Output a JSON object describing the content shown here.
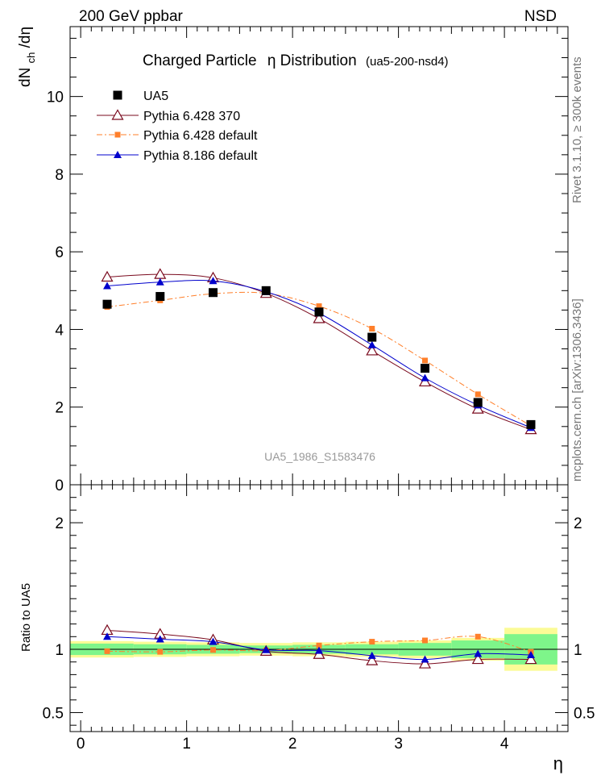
{
  "header": {
    "left": "200 GeV ppbar",
    "right": "NSD"
  },
  "side_labels": {
    "rivet": "Rivet 3.1.10, ≥ 300k events",
    "mcplots": "mcplots.cern.ch [arXiv:1306.3436]"
  },
  "colors": {
    "ua5": "#000000",
    "p6_370": "#7a0a1e",
    "p6_def": "#ff7f2a",
    "p8_def": "#0000cc",
    "band_inner": "#7ef58a",
    "band_outer": "#fbfb96"
  },
  "chart_data": [
    {
      "type": "line",
      "panel": "main",
      "title_main": "Charged Particle",
      "title_eta": "η Distribution",
      "title_tag": "(ua5-200-nsd4)",
      "ylabel": "dN",
      "ylabel_sub": "ch",
      "ylabel_tail": "/dη",
      "watermark": "UA5_1986_S1583476",
      "xlim": [
        -0.1,
        4.6
      ],
      "ylim": [
        0,
        11.8
      ],
      "yticks": [
        0,
        2,
        4,
        6,
        8,
        10
      ],
      "ytick_labels": [
        "0",
        "2",
        "4",
        "6",
        "8",
        "10"
      ],
      "x": [
        0.25,
        0.75,
        1.25,
        1.75,
        2.25,
        2.75,
        3.25,
        3.75,
        4.25
      ],
      "series": [
        {
          "name": "UA5",
          "values": [
            4.65,
            4.85,
            4.95,
            5.0,
            4.45,
            3.8,
            3.0,
            2.12,
            1.55
          ]
        },
        {
          "name": "Pythia 6.428 370",
          "values": [
            5.35,
            5.42,
            5.33,
            4.93,
            4.28,
            3.45,
            2.65,
            1.95,
            1.42
          ]
        },
        {
          "name": "Pythia 6.428 default",
          "values": [
            4.58,
            4.75,
            4.92,
            4.93,
            4.6,
            4.02,
            3.2,
            2.33,
            1.52
          ]
        },
        {
          "name": "Pythia 8.186 default",
          "values": [
            5.12,
            5.22,
            5.25,
            4.97,
            4.42,
            3.6,
            2.75,
            2.05,
            1.47
          ]
        }
      ]
    },
    {
      "type": "line",
      "panel": "ratio",
      "ylabel": "Ratio to UA5",
      "xlabel": "η",
      "xlim": [
        -0.1,
        4.6
      ],
      "ylim": [
        0.35,
        2.3
      ],
      "xticks": [
        0,
        1,
        2,
        3,
        4
      ],
      "xtick_labels": [
        "0",
        "1",
        "2",
        "3",
        "4"
      ],
      "yticks": [
        0.5,
        1,
        2
      ],
      "ytick_labels": [
        "0.5",
        "1",
        "2"
      ],
      "x": [
        0.25,
        0.75,
        1.25,
        1.75,
        2.25,
        2.75,
        3.25,
        3.75,
        4.25
      ],
      "bands": {
        "x_edges": [
          -0.1,
          0.5,
          1.0,
          1.5,
          2.0,
          2.5,
          3.0,
          3.5,
          4.0,
          4.5
        ],
        "inner": [
          0.045,
          0.04,
          0.035,
          0.03,
          0.035,
          0.04,
          0.05,
          0.07,
          0.12
        ],
        "outer": [
          0.065,
          0.06,
          0.055,
          0.05,
          0.055,
          0.06,
          0.07,
          0.09,
          0.17
        ]
      },
      "series": [
        {
          "name": "Pythia 6.428 370",
          "values": [
            1.15,
            1.12,
            1.075,
            0.985,
            0.96,
            0.91,
            0.885,
            0.92,
            0.92
          ]
        },
        {
          "name": "Pythia 6.428 default",
          "values": [
            0.985,
            0.98,
            0.995,
            0.99,
            1.03,
            1.06,
            1.07,
            1.1,
            0.98
          ]
        },
        {
          "name": "Pythia 8.186 default",
          "values": [
            1.1,
            1.08,
            1.06,
            0.995,
            0.99,
            0.95,
            0.92,
            0.965,
            0.955
          ]
        }
      ]
    }
  ]
}
